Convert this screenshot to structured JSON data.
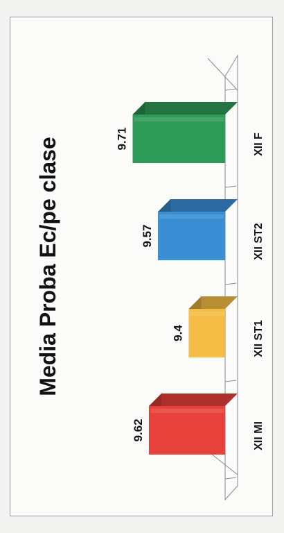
{
  "chart_data": {
    "type": "bar",
    "title": "Media Proba Ec/pe clase",
    "categories": [
      "XII MI",
      "XII ST1",
      "XII ST2",
      "XII F"
    ],
    "values": [
      9.62,
      9.4,
      9.57,
      9.71
    ],
    "data_labels": [
      "9.62",
      "9.4",
      "9.57",
      "9.71"
    ],
    "colors": [
      "#e8403a",
      "#f5bd45",
      "#3a8fd4",
      "#2e9a58"
    ],
    "orientation": "rotated-90-clockwise",
    "style": "3d-columns",
    "ylim": [
      9.2,
      9.8
    ],
    "grid": false,
    "legend": "none"
  }
}
